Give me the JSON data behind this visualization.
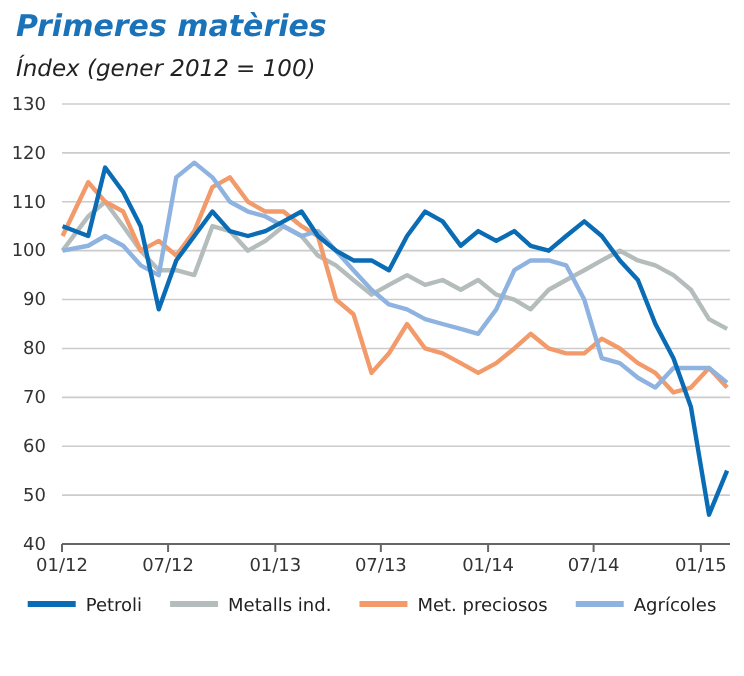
{
  "chart_data": {
    "type": "line",
    "title": "Primeres matèries",
    "subtitle": "Índex (gener 2012 = 100)",
    "x": [
      "2012-01-02",
      "2012-02-15",
      "2012-03-15",
      "2012-04-15",
      "2012-05-15",
      "2012-06-15",
      "2012-07-15",
      "2012-08-15",
      "2012-09-15",
      "2012-10-15",
      "2012-11-15",
      "2012-12-15",
      "2013-01-15",
      "2013-02-15",
      "2013-03-15",
      "2013-04-15",
      "2013-05-15",
      "2013-06-15",
      "2013-07-15",
      "2013-08-15",
      "2013-09-15",
      "2013-10-15",
      "2013-11-15",
      "2013-12-15",
      "2014-01-15",
      "2014-02-15",
      "2014-03-15",
      "2014-04-15",
      "2014-05-15",
      "2014-06-15",
      "2014-07-15",
      "2014-08-15",
      "2014-09-15",
      "2014-10-15",
      "2014-11-15",
      "2014-12-15",
      "2015-01-15",
      "2015-02-15"
    ],
    "series": [
      {
        "name": "Petroli",
        "color": "#0a6cb5",
        "values": [
          105,
          103,
          117,
          112,
          105,
          88,
          98,
          103,
          108,
          104,
          103,
          104,
          106,
          108,
          103,
          100,
          98,
          98,
          96,
          103,
          108,
          106,
          101,
          104,
          102,
          104,
          101,
          100,
          103,
          106,
          103,
          98,
          94,
          85,
          78,
          68,
          46,
          55
        ]
      },
      {
        "name": "Metalls ind.",
        "color": "#b4bcbc",
        "values": [
          100,
          107,
          110,
          105,
          100,
          96,
          96,
          95,
          105,
          104,
          100,
          102,
          105,
          103,
          99,
          97,
          94,
          91,
          93,
          95,
          93,
          94,
          92,
          94,
          91,
          90,
          88,
          92,
          94,
          96,
          98,
          100,
          98,
          97,
          95,
          92,
          86,
          84
        ]
      },
      {
        "name": "Met. preciosos",
        "color": "#f39a6a",
        "values": [
          103,
          114,
          110,
          108,
          100,
          102,
          99,
          104,
          113,
          115,
          110,
          108,
          108,
          105,
          103,
          90,
          87,
          75,
          79,
          85,
          80,
          79,
          77,
          75,
          77,
          80,
          83,
          80,
          79,
          79,
          82,
          80,
          77,
          75,
          71,
          72,
          76,
          72
        ]
      },
      {
        "name": "Agrícoles",
        "color": "#8fb3e0",
        "values": [
          100,
          101,
          103,
          101,
          97,
          95,
          115,
          118,
          115,
          110,
          108,
          107,
          105,
          103,
          104,
          100,
          96,
          92,
          89,
          88,
          86,
          85,
          84,
          83,
          88,
          96,
          98,
          98,
          97,
          90,
          78,
          77,
          74,
          72,
          76,
          76,
          76,
          73
        ]
      }
    ],
    "xlim": [
      "2012-01-01",
      "2015-02-20"
    ],
    "xticks": [
      {
        "value": "2012-01-01",
        "label": "01/12"
      },
      {
        "value": "2012-07-01",
        "label": "07/12"
      },
      {
        "value": "2013-01-01",
        "label": "01/13"
      },
      {
        "value": "2013-07-01",
        "label": "07/13"
      },
      {
        "value": "2014-01-01",
        "label": "01/14"
      },
      {
        "value": "2014-07-01",
        "label": "07/14"
      },
      {
        "value": "2015-01-01",
        "label": "01/15"
      }
    ],
    "ylim": [
      40,
      130
    ],
    "yticks": [
      40,
      50,
      60,
      70,
      80,
      90,
      100,
      110,
      120,
      130
    ],
    "grid": "y",
    "legend": "bottom",
    "marker": "none",
    "line_style": "solid"
  }
}
